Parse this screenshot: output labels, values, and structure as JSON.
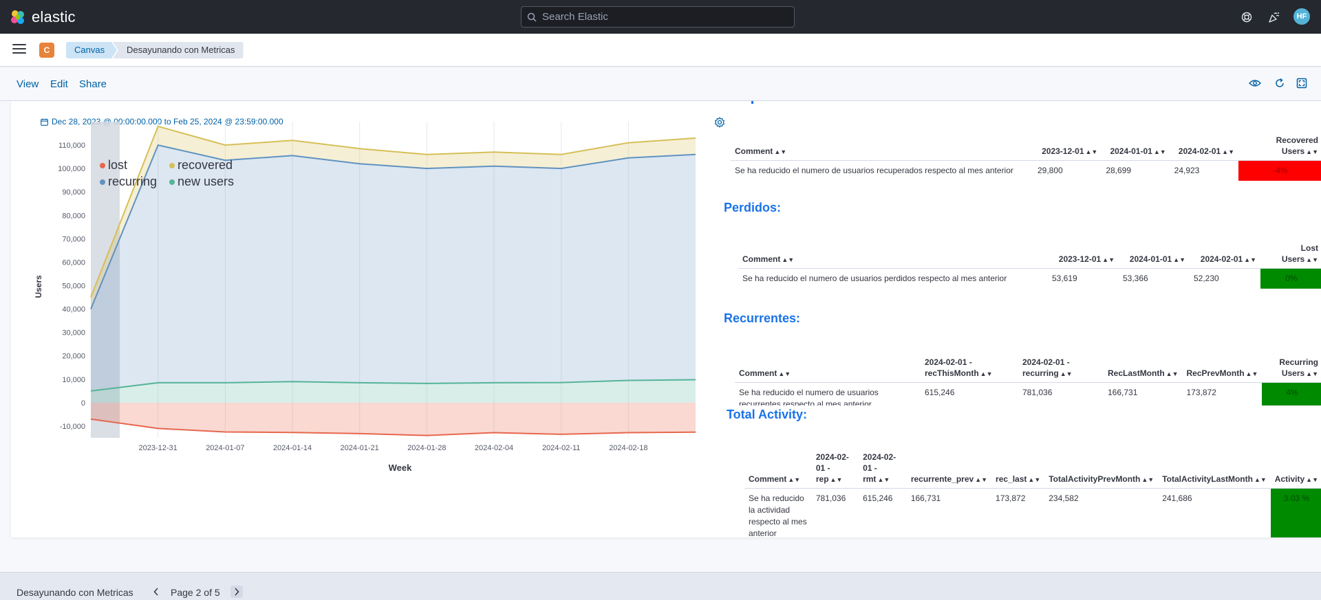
{
  "header": {
    "brand": "elastic",
    "search_placeholder": "Search Elastic",
    "avatar_initials": "HF",
    "icons": [
      "help-icon",
      "newsfeed-icon"
    ]
  },
  "breadcrumb": {
    "app_badge": "C",
    "items": [
      "Canvas",
      "Desayunando con Metricas"
    ]
  },
  "actions": {
    "view": "View",
    "edit": "Edit",
    "share": "Share",
    "icons": [
      "eye-icon",
      "refresh-icon",
      "fullscreen-icon"
    ]
  },
  "workpad": {
    "date_range": "Dec 28, 2023 @ 00:00:00.000 to Feb 25, 2024 @ 23:59:00.000",
    "sections": {
      "perdidos": "Perdidos:",
      "recurrentes": "Recurrentes:",
      "total_activity": "Total Activity:"
    },
    "recovered_table": {
      "headers": [
        "Comment",
        "2023-12-01",
        "2024-01-01",
        "2024-02-01",
        "Recovered Users"
      ],
      "row": [
        "Se ha reducido el numero de usuarios recuperados respecto al mes anterior",
        "29,800",
        "28,699",
        "24,923",
        "-4%"
      ]
    },
    "lost_table": {
      "headers": [
        "Comment",
        "2023-12-01",
        "2024-01-01",
        "2024-02-01",
        "Lost Users"
      ],
      "row": [
        "Se ha reducido el numero de usuarios perdidos respecto al mes anterior",
        "53,619",
        "53,366",
        "52,230",
        "0%"
      ]
    },
    "recurring_table": {
      "headers": [
        "Comment",
        "2024-02-01 - recThisMonth",
        "2024-02-01 - recurring",
        "RecLastMonth",
        "RecPrevMonth",
        "Recurring Users"
      ],
      "row": [
        "Se ha reducido el numero de usuarios recurrentes respecto al mes anterior",
        "615,246",
        "781,036",
        "166,731",
        "173,872",
        "4%"
      ]
    },
    "activity_table": {
      "headers": [
        "Comment",
        "2024-02-01 - rep",
        "2024-02-01 - rmt",
        "recurrente_prev",
        "rec_last",
        "TotalActivityPrevMonth",
        "TotalActivityLastMonth",
        "Activity"
      ],
      "row": [
        "Se ha reducido la actividad respecto al mes anterior",
        "781,036",
        "615,246",
        "166,731",
        "173,872",
        "234,582",
        "241,686",
        "3.03 %"
      ]
    }
  },
  "chart_data": {
    "type": "area",
    "title": "",
    "xlabel": "Week",
    "ylabel": "Users",
    "ylim": [
      -15000,
      120000
    ],
    "yticks": [
      110000,
      100000,
      90000,
      80000,
      70000,
      60000,
      50000,
      40000,
      30000,
      20000,
      10000,
      0,
      -10000
    ],
    "ytick_labels": [
      "110,000",
      "100,000",
      "90,000",
      "80,000",
      "70,000",
      "60,000",
      "50,000",
      "40,000",
      "30,000",
      "20,000",
      "10,000",
      "0",
      "-10,000"
    ],
    "x_tick_labels": [
      "2023-12-31",
      "2024-01-07",
      "2024-01-14",
      "2024-01-21",
      "2024-01-28",
      "2024-02-04",
      "2024-02-11",
      "2024-02-18"
    ],
    "x": [
      "2023-12-24",
      "2023-12-31",
      "2024-01-07",
      "2024-01-14",
      "2024-01-21",
      "2024-01-28",
      "2024-02-04",
      "2024-02-11",
      "2024-02-18",
      "2024-02-25"
    ],
    "legend_placement": "top-left",
    "grid": true,
    "series": [
      {
        "name": "lost",
        "color": "#e7664c",
        "values": [
          -7000,
          -11000,
          -12500,
          -12700,
          -13200,
          -14000,
          -12800,
          -13500,
          -12800,
          -12600
        ]
      },
      {
        "name": "recurring",
        "color": "#6092c0",
        "values": [
          40000,
          110000,
          103500,
          105500,
          102000,
          100000,
          101000,
          100000,
          104500,
          106000
        ]
      },
      {
        "name": "recovered",
        "color": "#d6bf57",
        "values": [
          45000,
          118000,
          110000,
          112000,
          108500,
          106000,
          107000,
          106000,
          111000,
          113000
        ]
      },
      {
        "name": "new users",
        "color": "#54b399",
        "values": [
          5000,
          8500,
          8500,
          9000,
          8500,
          8200,
          8500,
          8600,
          9500,
          9800
        ]
      }
    ]
  }
}
